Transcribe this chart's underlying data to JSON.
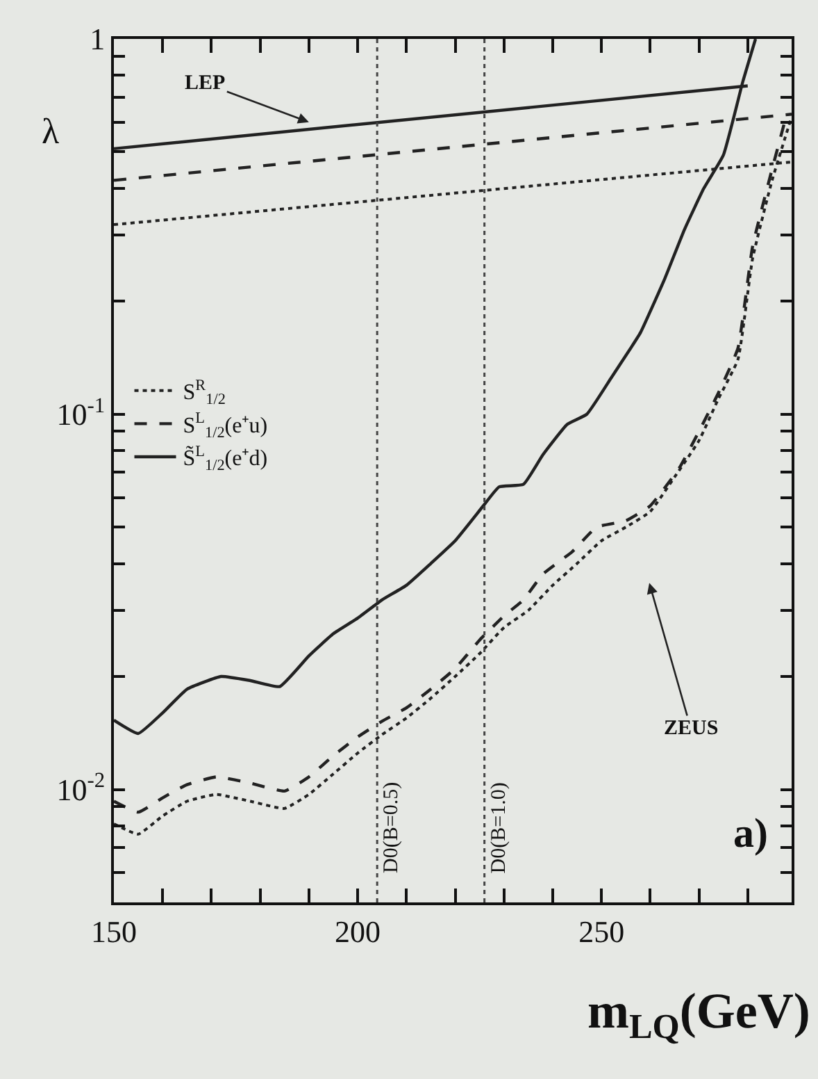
{
  "chart_data": {
    "type": "line",
    "xlabel": "m$_{LQ}$(GeV)",
    "ylabel": "λ",
    "log": "y",
    "grid": false,
    "legend": "left",
    "marker": "none",
    "xlim": [
      150,
      289
    ],
    "xticks": [
      150,
      {
        "value": 160,
        "label": null
      },
      {
        "value": 170,
        "label": null
      },
      {
        "value": 180,
        "label": null
      },
      {
        "value": 190,
        "label": null
      },
      200,
      {
        "value": 210,
        "label": null
      },
      {
        "value": 220,
        "label": null
      },
      {
        "value": 230,
        "label": null
      },
      {
        "value": 240,
        "label": null
      },
      250,
      {
        "value": 260,
        "label": null
      },
      {
        "value": 270,
        "label": null
      },
      {
        "value": 280,
        "label": null
      }
    ],
    "ylim": [
      0.005,
      1
    ],
    "yticks": [
      {
        "value": 0.006,
        "label": null
      },
      {
        "value": 0.007,
        "label": null
      },
      {
        "value": 0.008,
        "label": null
      },
      {
        "value": 0.009,
        "label": null
      },
      {
        "value": 0.01,
        "label": "10$^{-2}$"
      },
      {
        "value": 0.02,
        "label": null
      },
      {
        "value": 0.03,
        "label": null
      },
      {
        "value": 0.04,
        "label": null
      },
      {
        "value": 0.05,
        "label": null
      },
      {
        "value": 0.06,
        "label": null
      },
      {
        "value": 0.07,
        "label": null
      },
      {
        "value": 0.08,
        "label": null
      },
      {
        "value": 0.09,
        "label": null
      },
      {
        "value": 0.1,
        "label": "10$^{-1}$"
      },
      {
        "value": 0.2,
        "label": null
      },
      {
        "value": 0.3,
        "label": null
      },
      {
        "value": 0.4,
        "label": null
      },
      {
        "value": 0.5,
        "label": null
      },
      {
        "value": 0.6,
        "label": null
      },
      {
        "value": 0.7,
        "label": null
      },
      {
        "value": 0.8,
        "label": null
      },
      {
        "value": 0.9,
        "label": null
      },
      1
    ],
    "series": [
      {
        "name": "S$^{R}$$_{1/2}$",
        "color": "#222222",
        "line_style": "dotted",
        "x": [
          150,
          155,
          160,
          165,
          171,
          178,
          185,
          190,
          195,
          200,
          205,
          210,
          215,
          220,
          225,
          230,
          235,
          240,
          245,
          250,
          255,
          260,
          265,
          270,
          274,
          278,
          281,
          285,
          289
        ],
        "values": [
          0.0081,
          0.0076,
          0.0085,
          0.0093,
          0.0097,
          0.0093,
          0.0089,
          0.0097,
          0.011,
          0.0125,
          0.014,
          0.0155,
          0.0175,
          0.02,
          0.023,
          0.027,
          0.03,
          0.035,
          0.04,
          0.046,
          0.05,
          0.055,
          0.068,
          0.085,
          0.11,
          0.14,
          0.26,
          0.42,
          0.62
        ]
      },
      {
        "name": "S$^{L}$$_{1/2}$(e⁺u)",
        "color": "#222222",
        "line_style": "dashed",
        "x": [
          150,
          155,
          160,
          165,
          171,
          178,
          185,
          190,
          195,
          200,
          205,
          210,
          215,
          220,
          225,
          230,
          234,
          238,
          244,
          249,
          255,
          260,
          266,
          270,
          274,
          278,
          281,
          285,
          288
        ],
        "values": [
          0.0093,
          0.0087,
          0.0095,
          0.0103,
          0.0108,
          0.0104,
          0.0099,
          0.0108,
          0.0123,
          0.0138,
          0.0152,
          0.0165,
          0.0185,
          0.021,
          0.025,
          0.029,
          0.032,
          0.0375,
          0.043,
          0.05,
          0.052,
          0.057,
          0.072,
          0.09,
          0.114,
          0.15,
          0.28,
          0.45,
          0.63
        ]
      },
      {
        "name": "S̃$^{L}$$_{1/2}$(e⁺d)",
        "color": "#222222",
        "line_style": "solid",
        "x": [
          150,
          155,
          160,
          165,
          172,
          178,
          184,
          190,
          195,
          200,
          205,
          210,
          215,
          220,
          226,
          229,
          234,
          238,
          243,
          247,
          252,
          256,
          258,
          263,
          267,
          271,
          275,
          279,
          281.6
        ],
        "values": [
          0.0153,
          0.0141,
          0.016,
          0.0185,
          0.02,
          0.0195,
          0.0188,
          0.0227,
          0.026,
          0.0286,
          0.032,
          0.035,
          0.04,
          0.046,
          0.0575,
          0.064,
          0.065,
          0.078,
          0.094,
          0.1,
          0.125,
          0.15,
          0.165,
          0.23,
          0.31,
          0.4,
          0.49,
          0.77,
          1.0
        ]
      },
      {
        "color": "#222222",
        "line_style": "dotted",
        "x": [
          150,
          289
        ],
        "values": [
          0.32,
          0.47
        ]
      },
      {
        "color": "#222222",
        "line_style": "dashed",
        "x": [
          150,
          289
        ],
        "values": [
          0.42,
          0.63
        ]
      },
      {
        "color": "#222222",
        "line_style": "solid",
        "x": [
          150,
          280
        ],
        "values": [
          0.51,
          0.75
        ]
      }
    ],
    "ref_lines": [
      {
        "axis": "x",
        "value": 204,
        "line_style": "dotted",
        "color": "#444444"
      },
      {
        "axis": "x",
        "value": 226,
        "line_style": "dotted",
        "color": "#444444"
      }
    ],
    "annotations": [
      "D0(B=0.5)",
      "D0(B=1.0)",
      {
        "text": "LEP",
        "x": 190,
        "y": 0.6
      },
      "ZEUS",
      "a)"
    ]
  }
}
